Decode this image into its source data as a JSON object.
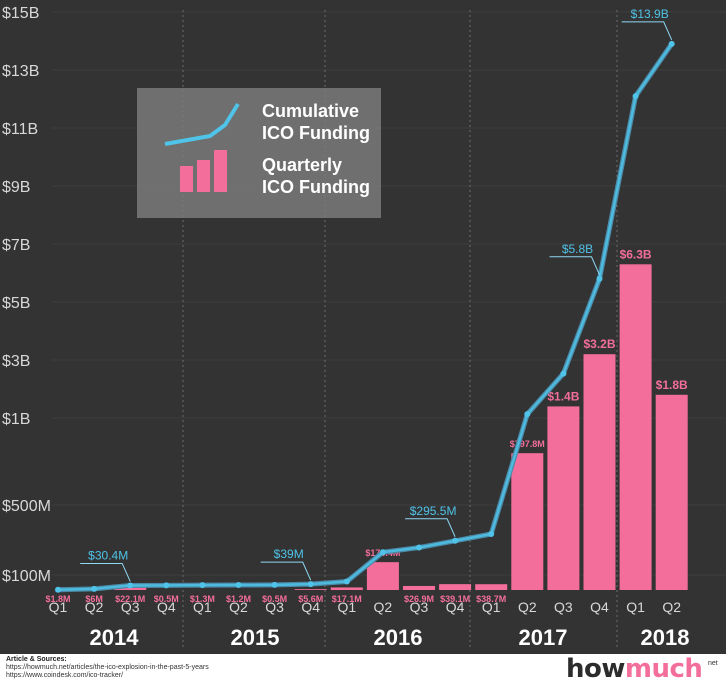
{
  "chart_data": {
    "type": "bar",
    "y_ticks": [
      "$15B",
      "$13B",
      "$11B",
      "$9B",
      "$7B",
      "$5B",
      "$3B",
      "$1B",
      "$500M",
      "$100M"
    ],
    "quarters": [
      "Q1",
      "Q2",
      "Q3",
      "Q4",
      "Q1",
      "Q2",
      "Q3",
      "Q4",
      "Q1",
      "Q2",
      "Q3",
      "Q4",
      "Q1",
      "Q2",
      "Q3",
      "Q4",
      "Q1",
      "Q2"
    ],
    "years": [
      "2014",
      "2015",
      "2016",
      "2017",
      "2018"
    ],
    "series": [
      {
        "name": "Quarterly ICO Funding",
        "color": "#f46e9b",
        "values_millions": [
          1.8,
          6,
          22.1,
          0.5,
          1.3,
          1.2,
          0.5,
          5.6,
          17.1,
          173.4,
          26.9,
          39.1,
          38.7,
          797.8,
          1400,
          3200,
          6300,
          1800
        ],
        "labels": [
          "$1.8M",
          "$6M",
          "$22.1M",
          "$0.5M",
          "$1.3M",
          "$1.2M",
          "$0.5M",
          "$5.6M",
          "$17.1M",
          "$173.4M",
          "$26.9M",
          "$39.1M",
          "$38.7M",
          "$797.8M",
          "$1.4B",
          "$3.2B",
          "$6.3B",
          "$1.8B"
        ]
      },
      {
        "name": "Cumulative ICO Funding",
        "color": "#4fc3e8",
        "values_millions": [
          1.8,
          7.8,
          30.4,
          30.9,
          32.2,
          33.4,
          33.9,
          39,
          56.6,
          230,
          256.9,
          295.5,
          334.2,
          1132,
          2532,
          5800,
          12100,
          13900
        ],
        "callouts": [
          {
            "index": 2,
            "label": "$30.4M"
          },
          {
            "index": 7,
            "label": "$39M"
          },
          {
            "index": 11,
            "label": "$295.5M"
          },
          {
            "index": 15,
            "label": "$5.8B"
          },
          {
            "index": 17,
            "label": "$13.9B"
          }
        ]
      }
    ],
    "legend": {
      "placement": "top-left",
      "line_label": [
        "Cumulative",
        "ICO Funding"
      ],
      "bar_label": [
        "Quarterly",
        "ICO Funding"
      ]
    },
    "colors": {
      "background": "#333333",
      "grid": "#3d3d3d",
      "axis_text": "#d8d8d8"
    }
  },
  "footer": {
    "sources_title": "Article & Sources:",
    "source_1": "https://howmuch.net/articles/the-ico-explosion-in-the-past-5-years",
    "source_2": "https://www.coindesk.com/ico-tracker/",
    "brand_a": "how",
    "brand_b": "much",
    "brand_suffix": "net"
  }
}
